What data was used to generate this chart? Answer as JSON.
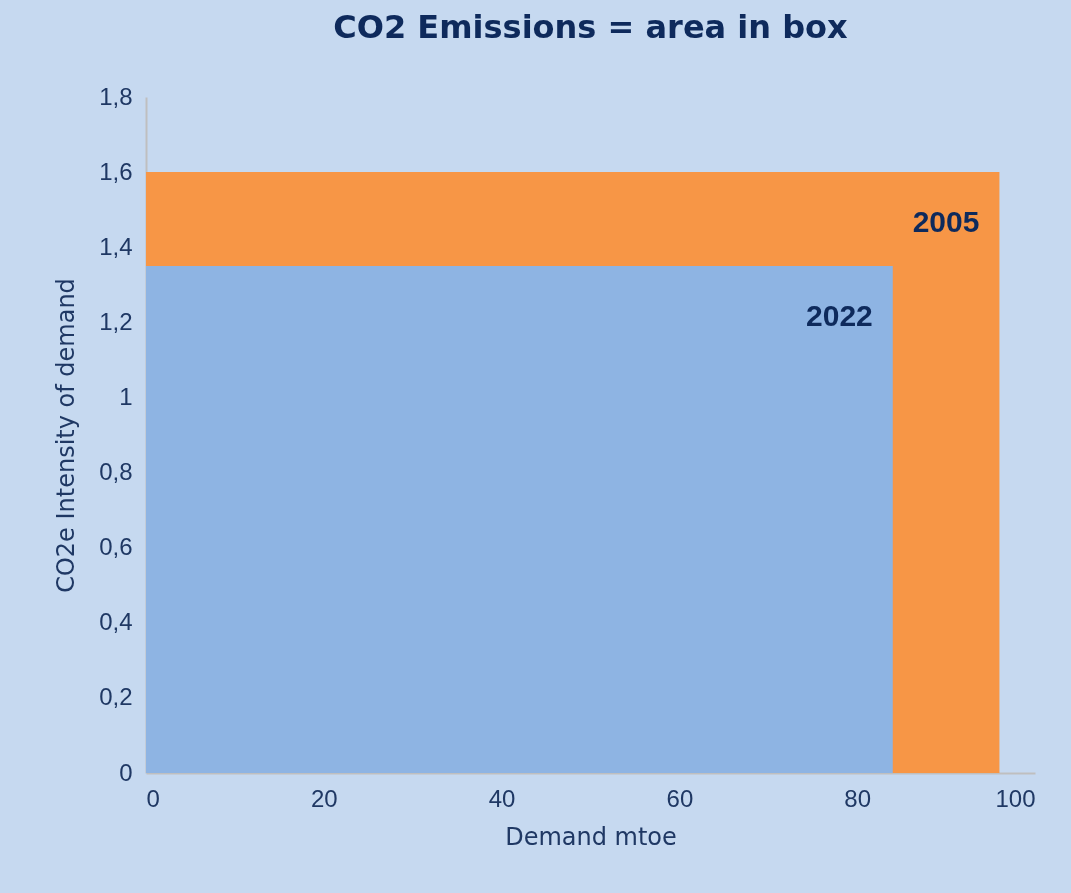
{
  "chart_data": {
    "type": "area",
    "title": "CO2 Emissions = area in box",
    "xlabel": "Demand mtoe",
    "ylabel": "CO2e Intensity of demand",
    "xlim": [
      0,
      100
    ],
    "xticks": [
      0,
      20,
      40,
      60,
      80,
      100
    ],
    "ylim": [
      0,
      1.8
    ],
    "yticks": [
      0,
      {
        "value": 0.2,
        "label": "0,2"
      },
      {
        "value": 0.4,
        "label": "0,4"
      },
      {
        "value": 0.6,
        "label": "0,6"
      },
      {
        "value": 0.8,
        "label": "0,8"
      },
      1,
      {
        "value": 1.2,
        "label": "1,2"
      },
      {
        "value": 1.4,
        "label": "1,4"
      },
      {
        "value": 1.6,
        "label": "1,6"
      },
      {
        "value": 1.8,
        "label": "1,8"
      }
    ],
    "grid": false,
    "series": [
      {
        "name": "2005",
        "color": "#f79646",
        "x": [
          0,
          96
        ],
        "values": [
          1.6,
          1.6
        ]
      },
      {
        "name": "2022",
        "color": "#8eb4e3",
        "x": [
          0,
          84
        ],
        "values": [
          1.35,
          1.35
        ]
      }
    ]
  }
}
